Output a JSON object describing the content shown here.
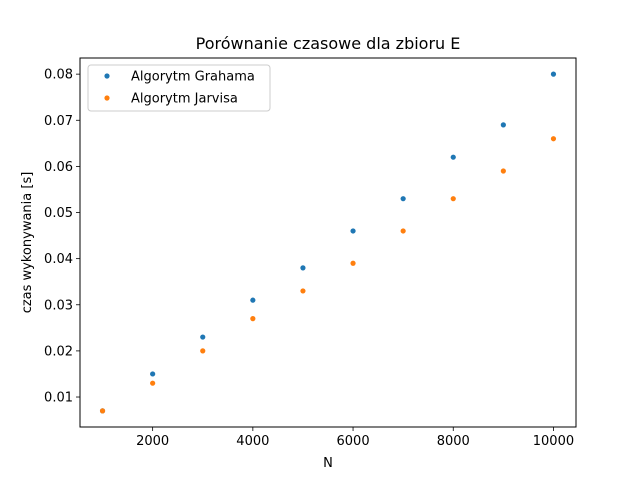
{
  "chart_data": {
    "type": "scatter",
    "title": "Porównanie czasowe dla zbioru E",
    "xlabel": "N",
    "ylabel": "czas wykonywania [s]",
    "xlim": [
      550,
      10450
    ],
    "ylim": [
      0.0035,
      0.0835
    ],
    "xticks": [
      2000,
      4000,
      6000,
      8000,
      10000
    ],
    "yticks": [
      0.01,
      0.02,
      0.03,
      0.04,
      0.05,
      0.06,
      0.07,
      0.08
    ],
    "grid": false,
    "legend_position": "top-left",
    "series": [
      {
        "name": "Algorytm Grahama",
        "color": "#1f77b4",
        "x": [
          1000,
          2000,
          3000,
          4000,
          5000,
          6000,
          7000,
          8000,
          9000,
          10000
        ],
        "y": [
          0.007,
          0.015,
          0.023,
          0.031,
          0.038,
          0.046,
          0.053,
          0.062,
          0.069,
          0.08
        ]
      },
      {
        "name": "Algorytm Jarvisa",
        "color": "#ff7f0e",
        "x": [
          1000,
          2000,
          3000,
          4000,
          5000,
          6000,
          7000,
          8000,
          9000,
          10000
        ],
        "y": [
          0.007,
          0.013,
          0.02,
          0.027,
          0.033,
          0.039,
          0.046,
          0.053,
          0.059,
          0.066
        ]
      }
    ]
  }
}
